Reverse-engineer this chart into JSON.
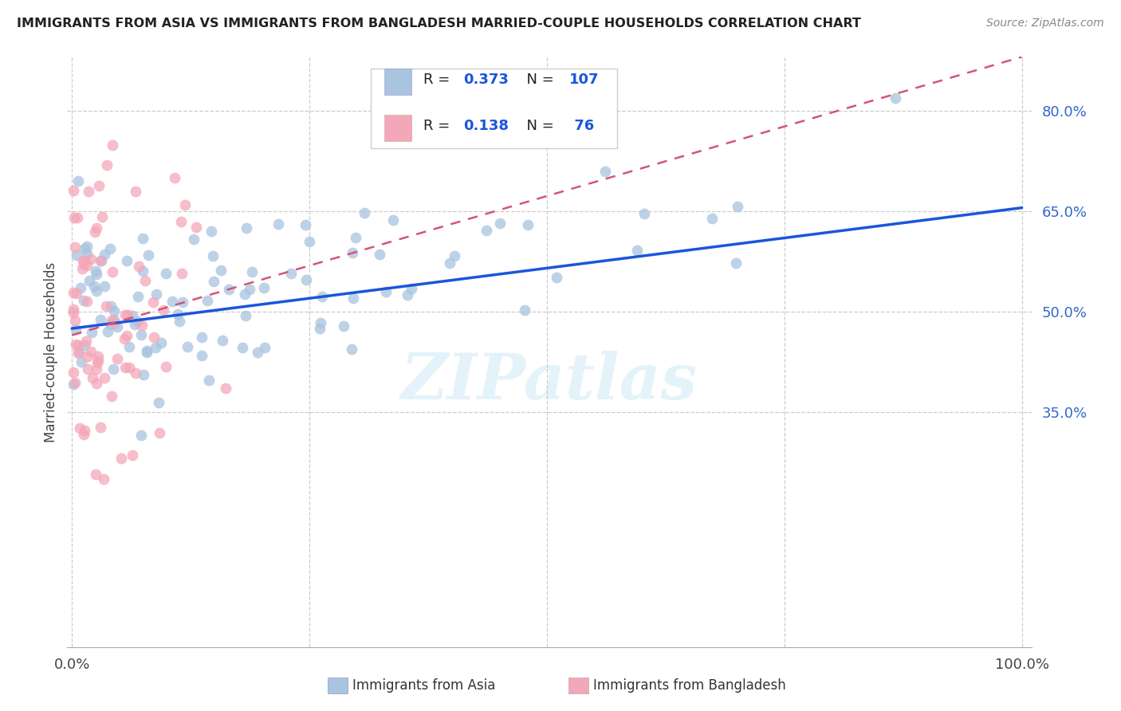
{
  "title": "IMMIGRANTS FROM ASIA VS IMMIGRANTS FROM BANGLADESH MARRIED-COUPLE HOUSEHOLDS CORRELATION CHART",
  "source": "Source: ZipAtlas.com",
  "ylabel": "Married-couple Households",
  "color_asia": "#a8c4e0",
  "color_bangladesh": "#f4a7b9",
  "color_asia_line": "#1a56db",
  "color_bangladesh_line": "#d4547a",
  "color_ytick": "#3366cc",
  "watermark": "ZIPatlas",
  "legend_r1": "0.373",
  "legend_n1": "107",
  "legend_r2": "0.138",
  "legend_n2": "76",
  "ytick_values": [
    0.35,
    0.5,
    0.65,
    0.8
  ],
  "ytick_labels": [
    "35.0%",
    "50.0%",
    "65.0%",
    "80.0%"
  ],
  "xlim": [
    -0.005,
    1.01
  ],
  "ylim": [
    0.0,
    0.88
  ],
  "blue_line_x": [
    0.0,
    1.0
  ],
  "blue_line_y": [
    0.475,
    0.655
  ],
  "pink_line_x": [
    0.0,
    1.0
  ],
  "pink_line_y": [
    0.465,
    0.88
  ],
  "seed": 42
}
